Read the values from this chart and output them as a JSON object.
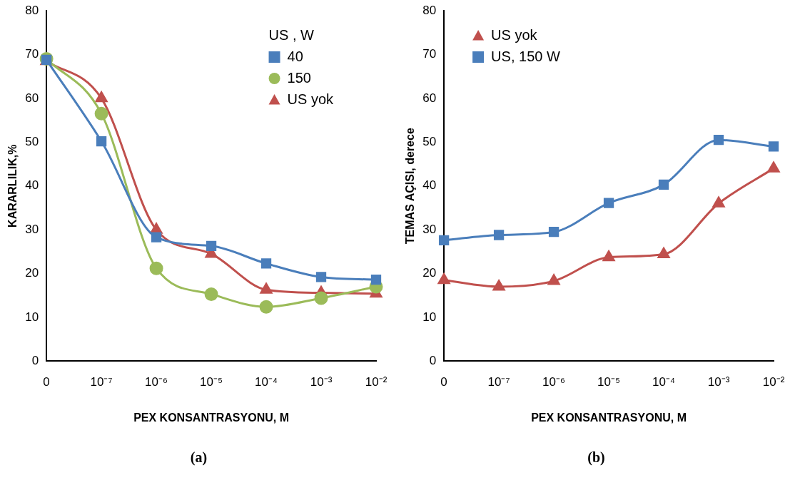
{
  "chart_data": [
    {
      "type": "line",
      "categories": [
        "0",
        "10⁻⁷",
        "10⁻⁶",
        "10⁻⁵",
        "10⁻⁴",
        "10⁻³",
        "10⁻²"
      ],
      "xlabel": "PEX KONSANTRASYONU, M",
      "ylabel": "KARARLILIK,%",
      "ylim": [
        0,
        80
      ],
      "yticks": [
        0,
        10,
        20,
        30,
        40,
        50,
        60,
        70,
        80
      ],
      "grid": false,
      "legend": "top right",
      "legend_title": "US , W",
      "annotations": [
        "(a)"
      ],
      "series": [
        {
          "name": "40",
          "color": "#4a7ebb",
          "marker": "square",
          "values": [
            68.8,
            50.2,
            28.3,
            26.3,
            22.3,
            19.2,
            18.6
          ]
        },
        {
          "name": "150",
          "color": "#9bbb59",
          "marker": "circle",
          "values": [
            69,
            56.5,
            21.2,
            15.3,
            12.4,
            14.4,
            17
          ]
        },
        {
          "name": "US yok",
          "color": "#c0504d",
          "marker": "triangle",
          "values": [
            68.5,
            60,
            30,
            24.5,
            16.3,
            15.6,
            15.4
          ]
        }
      ]
    },
    {
      "type": "line",
      "categories": [
        "0",
        "10⁻⁷",
        "10⁻⁶",
        "10⁻⁵",
        "10⁻⁴",
        "10⁻³",
        "10⁻²"
      ],
      "xlabel": "PEX KONSANTRASYONU, M",
      "ylabel": "TEMAS AÇISI, derece",
      "ylim": [
        0,
        80
      ],
      "yticks": [
        0,
        10,
        20,
        30,
        40,
        50,
        60,
        70,
        80
      ],
      "grid": false,
      "legend": "top left",
      "annotations": [
        "(b)"
      ],
      "series": [
        {
          "name": "US yok",
          "color": "#c0504d",
          "marker": "triangle",
          "values": [
            18.5,
            17,
            18.3,
            23.7,
            24.4,
            36,
            44
          ]
        },
        {
          "name": "US, 150 W",
          "color": "#4a7ebb",
          "marker": "square",
          "values": [
            27.6,
            28.8,
            29.5,
            36.1,
            40.3,
            50.5,
            49
          ]
        }
      ]
    }
  ]
}
